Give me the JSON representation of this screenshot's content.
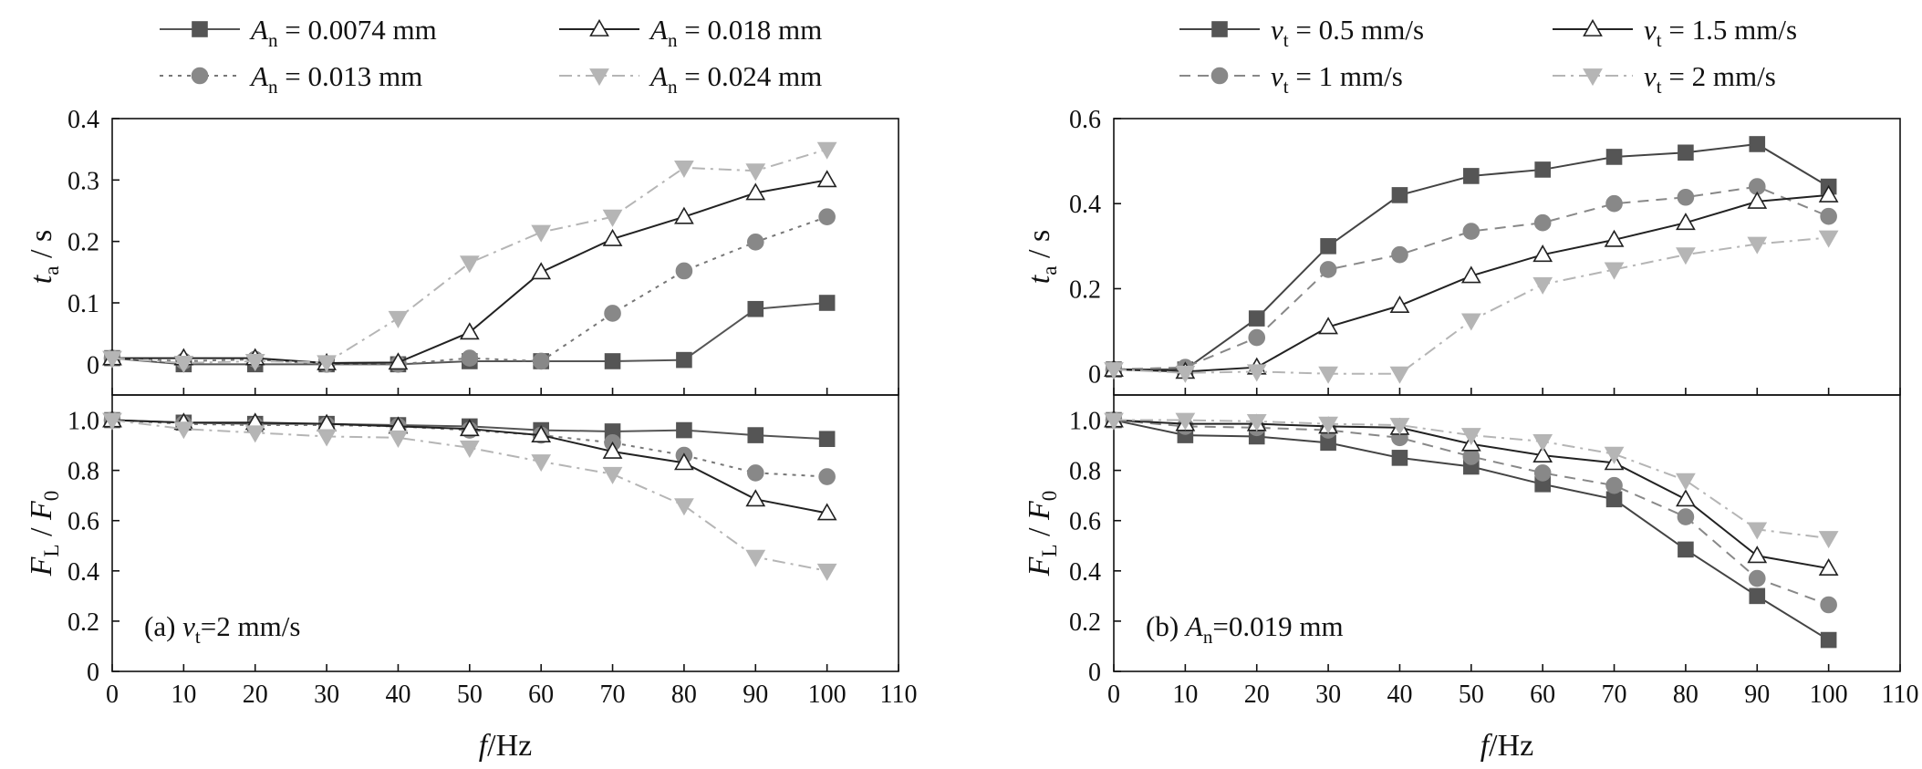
{
  "chart_data": [
    {
      "id": "a",
      "type": "line",
      "annotation": {
        "prefix": "(a) ",
        "var": "v",
        "sub": "t",
        "rest": "=2 mm/s"
      },
      "xlabel": {
        "var": "f",
        "unit": "/Hz"
      },
      "x_ticks": [
        0,
        10,
        20,
        30,
        40,
        50,
        60,
        70,
        80,
        90,
        100,
        110
      ],
      "xlim": [
        0,
        110
      ],
      "panels": [
        {
          "id": "top",
          "ylabel": {
            "var": "t",
            "sub": "a",
            "unit": " / s"
          },
          "ylim": [
            -0.05,
            0.4
          ],
          "y_ticks": [
            "0",
            "0.1",
            "0.2",
            "0.3",
            "0.4"
          ],
          "y_tick_values": [
            0,
            0.1,
            0.2,
            0.3,
            0.4
          ],
          "series": [
            {
              "key": "An0074",
              "values": [
                0.01,
                0.0,
                0.0,
                0.0,
                0.0,
                0.005,
                0.005,
                0.005,
                0.007,
                0.09,
                0.1
              ]
            },
            {
              "key": "An013",
              "values": [
                0.01,
                0.005,
                0.008,
                0.0,
                0.0,
                0.01,
                0.005,
                0.083,
                0.152,
                0.199,
                0.24
              ]
            },
            {
              "key": "An018",
              "values": [
                0.01,
                0.01,
                0.01,
                0.002,
                0.003,
                0.052,
                0.15,
                0.204,
                0.24,
                0.279,
                0.3
              ]
            },
            {
              "key": "An024",
              "values": [
                0.01,
                0.002,
                0.005,
                0.003,
                0.075,
                0.165,
                0.215,
                0.24,
                0.32,
                0.315,
                0.35
              ]
            }
          ]
        },
        {
          "id": "bottom",
          "ylabel": {
            "var": "F",
            "sub": "L",
            "unit": " / ",
            "var2": "F",
            "sub2": "0"
          },
          "ylim": [
            0,
            1.1
          ],
          "y_ticks": [
            "0",
            "0.2",
            "0.4",
            "0.6",
            "0.8",
            "1.0"
          ],
          "y_tick_values": [
            0,
            0.2,
            0.4,
            0.6,
            0.8,
            1.0
          ],
          "series": [
            {
              "key": "An0074",
              "values": [
                1.0,
                0.99,
                0.985,
                0.985,
                0.98,
                0.975,
                0.96,
                0.955,
                0.96,
                0.94,
                0.925
              ]
            },
            {
              "key": "An013",
              "values": [
                1.0,
                0.985,
                0.98,
                0.98,
                0.975,
                0.96,
                0.94,
                0.91,
                0.86,
                0.79,
                0.775
              ]
            },
            {
              "key": "An018",
              "values": [
                1.0,
                0.99,
                0.99,
                0.985,
                0.975,
                0.965,
                0.94,
                0.875,
                0.83,
                0.685,
                0.63
              ]
            },
            {
              "key": "An024",
              "values": [
                1.0,
                0.965,
                0.95,
                0.935,
                0.93,
                0.89,
                0.835,
                0.785,
                0.66,
                0.455,
                0.4
              ]
            }
          ]
        }
      ],
      "legend": {
        "placement": "top",
        "entries": [
          {
            "key": "An0074",
            "var": "A",
            "sub": "n",
            "text": " = 0.0074 mm"
          },
          {
            "key": "An018",
            "var": "A",
            "sub": "n",
            "text": " = 0.018 mm"
          },
          {
            "key": "An013",
            "var": "A",
            "sub": "n",
            "text": " = 0.013 mm"
          },
          {
            "key": "An024",
            "var": "A",
            "sub": "n",
            "text": " = 0.024 mm"
          }
        ]
      }
    },
    {
      "id": "b",
      "type": "line",
      "annotation": {
        "prefix": "(b) ",
        "var": "A",
        "sub": "n",
        "rest": "=0.019 mm"
      },
      "xlabel": {
        "var": "f",
        "unit": "/Hz"
      },
      "x_ticks": [
        0,
        10,
        20,
        30,
        40,
        50,
        60,
        70,
        80,
        90,
        100,
        110
      ],
      "xlim": [
        0,
        110
      ],
      "panels": [
        {
          "id": "top",
          "ylabel": {
            "var": "t",
            "sub": "a",
            "unit": " / s"
          },
          "ylim": [
            -0.05,
            0.6
          ],
          "y_ticks": [
            "0",
            "0.2",
            "0.4",
            "0.6"
          ],
          "y_tick_values": [
            0,
            0.2,
            0.4,
            0.6
          ],
          "series": [
            {
              "key": "vt05",
              "values": [
                0.01,
                0.01,
                0.13,
                0.3,
                0.42,
                0.465,
                0.48,
                0.51,
                0.52,
                0.54,
                0.44
              ]
            },
            {
              "key": "vt1",
              "values": [
                0.01,
                0.015,
                0.085,
                0.245,
                0.28,
                0.335,
                0.355,
                0.4,
                0.415,
                0.44,
                0.37
              ]
            },
            {
              "key": "vt15",
              "values": [
                0.01,
                0.005,
                0.015,
                0.11,
                0.16,
                0.23,
                0.28,
                0.315,
                0.355,
                0.405,
                0.42
              ]
            },
            {
              "key": "vt2",
              "values": [
                0.01,
                0.002,
                0.005,
                0.0,
                0.0,
                0.125,
                0.21,
                0.245,
                0.28,
                0.305,
                0.32
              ]
            }
          ]
        },
        {
          "id": "bottom",
          "ylabel": {
            "var": "F",
            "sub": "L",
            "unit": " / ",
            "var2": "F",
            "sub2": "0"
          },
          "ylim": [
            0,
            1.1
          ],
          "y_ticks": [
            "0",
            "0.2",
            "0.4",
            "0.6",
            "0.8",
            "1.0"
          ],
          "y_tick_values": [
            0,
            0.2,
            0.4,
            0.6,
            0.8,
            1.0
          ],
          "series": [
            {
              "key": "vt05",
              "values": [
                1.0,
                0.94,
                0.935,
                0.91,
                0.85,
                0.815,
                0.745,
                0.685,
                0.485,
                0.3,
                0.125
              ]
            },
            {
              "key": "vt1",
              "values": [
                1.0,
                0.975,
                0.97,
                0.96,
                0.93,
                0.855,
                0.79,
                0.74,
                0.615,
                0.37,
                0.265
              ]
            },
            {
              "key": "vt15",
              "values": [
                1.0,
                0.985,
                0.985,
                0.975,
                0.97,
                0.905,
                0.86,
                0.83,
                0.685,
                0.46,
                0.41
              ]
            },
            {
              "key": "vt2",
              "values": [
                1.0,
                1.0,
                0.995,
                0.985,
                0.98,
                0.94,
                0.915,
                0.865,
                0.76,
                0.565,
                0.53
              ]
            }
          ]
        }
      ],
      "legend": {
        "placement": "top",
        "entries": [
          {
            "key": "vt05",
            "var": "v",
            "sub": "t",
            "text": " = 0.5 mm/s"
          },
          {
            "key": "vt15",
            "var": "v",
            "sub": "t",
            "text": " = 1.5 mm/s"
          },
          {
            "key": "vt1",
            "var": "v",
            "sub": "t",
            "text": " = 1 mm/s"
          },
          {
            "key": "vt2",
            "var": "v",
            "sub": "t",
            "text": " = 2 mm/s"
          }
        ]
      }
    }
  ],
  "x_values": [
    0,
    10,
    20,
    30,
    40,
    50,
    60,
    70,
    80,
    90,
    100
  ],
  "series_styles": {
    "An0074": {
      "color": "#555555",
      "dash": "solid",
      "marker": "square",
      "fill": "#555555"
    },
    "An013": {
      "color": "#777777",
      "dash": "dotted",
      "marker": "circle",
      "fill": "#888888"
    },
    "An018": {
      "color": "#222222",
      "dash": "solid",
      "marker": "triangle-up",
      "fill": "#ffffff"
    },
    "An024": {
      "color": "#b5b5b5",
      "dash": "dashdot",
      "marker": "triangle-down",
      "fill": "#b5b5b5"
    },
    "vt05": {
      "color": "#444444",
      "dash": "solid",
      "marker": "square",
      "fill": "#555555"
    },
    "vt1": {
      "color": "#888888",
      "dash": "dashed",
      "marker": "circle",
      "fill": "#888888"
    },
    "vt15": {
      "color": "#222222",
      "dash": "solid",
      "marker": "triangle-up",
      "fill": "#ffffff"
    },
    "vt2": {
      "color": "#b5b5b5",
      "dash": "dashdot",
      "marker": "triangle-down",
      "fill": "#b5b5b5"
    }
  }
}
